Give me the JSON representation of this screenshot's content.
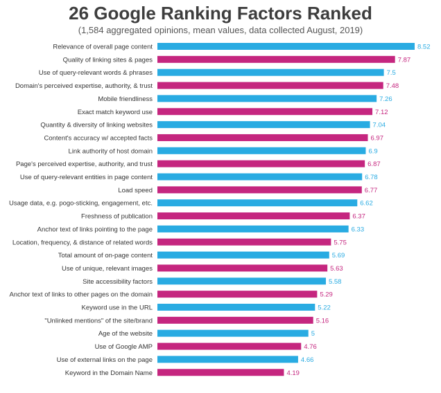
{
  "chart_data": {
    "type": "bar",
    "orientation": "horizontal",
    "title": "26 Google Ranking Factors Ranked",
    "subtitle": "(1,584 aggregated opinions, mean values, data collected August, 2019)",
    "categories": [
      "Relevance of overall page content",
      "Quality of linking sites & pages",
      "Use of query-relevant words & phrases",
      "Domain's perceived expertise, authority, & trust",
      "Mobile friendliness",
      "Exact match keyword use",
      "Quantity & diversity of linking websites",
      "Content's accuracy w/ accepted facts",
      "Link authority of host domain",
      "Page's perceived expertise, authority, and trust",
      "Use of query-relevant entities in page content",
      "Load speed",
      "Usage data, e.g. pogo-sticking, engagement, etc.",
      "Freshness of publication",
      "Anchor text of links pointing to the page",
      "Location, frequency, & distance of related words",
      "Total amount of on-page content",
      "Use of unique, relevant images",
      "Site accessibility factors",
      "Anchor text of links to other pages on the domain",
      "Keyword use in the URL",
      "\"Unlinked mentions\" of the site/brand",
      "Age of the website",
      "Use of Google AMP",
      "Use of external links on the page",
      "Keyword in the Domain Name"
    ],
    "values": [
      8.52,
      7.87,
      7.5,
      7.48,
      7.26,
      7.12,
      7.04,
      6.97,
      6.9,
      6.87,
      6.78,
      6.77,
      6.62,
      6.37,
      6.33,
      5.75,
      5.69,
      5.63,
      5.58,
      5.29,
      5.22,
      5.16,
      5,
      4.76,
      4.66,
      4.19
    ],
    "value_labels": [
      "8.52",
      "7.87",
      "7.5",
      "7.48",
      "7.26",
      "7.12",
      "7.04",
      "6.97",
      "6.9",
      "6.87",
      "6.78",
      "6.77",
      "6.62",
      "6.37",
      "6.33",
      "5.75",
      "5.69",
      "5.63",
      "5.58",
      "5.29",
      "5.22",
      "5.16",
      "5",
      "4.76",
      "4.66",
      "4.19"
    ],
    "colors": [
      "blue",
      "pink",
      "blue",
      "pink",
      "blue",
      "pink",
      "blue",
      "pink",
      "blue",
      "pink",
      "blue",
      "pink",
      "blue",
      "pink",
      "blue",
      "pink",
      "blue",
      "pink",
      "blue",
      "pink",
      "blue",
      "pink",
      "blue",
      "pink",
      "blue",
      "pink"
    ],
    "palette": {
      "blue": "#29abe2",
      "pink": "#c5267f"
    },
    "xlim": [
      0,
      8.52
    ],
    "grid": false,
    "legend": "none"
  }
}
